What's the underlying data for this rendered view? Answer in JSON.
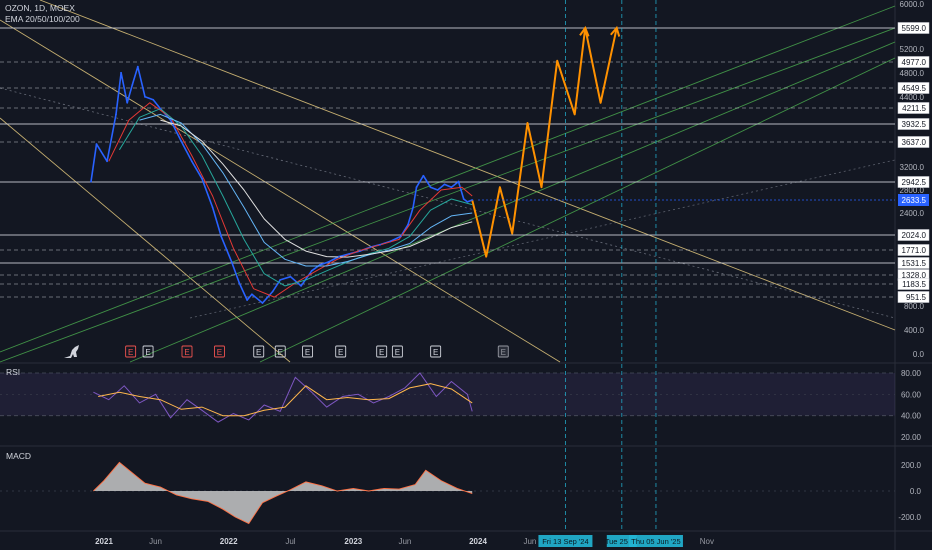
{
  "header": {
    "symbol_line": "OZON, 1D, MOEX",
    "indicator_line": "EMA 20/50/100/200"
  },
  "colors": {
    "background": "#131722",
    "price": "#2962ff",
    "ema20": "#e53935",
    "ema50": "#26a69a",
    "ema100": "#64b5f6",
    "ema200": "#e0e0e0",
    "projection": "#ff9100",
    "channel_yellow": "#ffe08a",
    "channel_green": "#4caf50",
    "level_line": "#d1d4dc",
    "cycle_line": "#22b6d6",
    "rsi_line": "#7e57c2",
    "rsi_signal": "#ffb74d",
    "macd_hist": "#c8c8c8",
    "macd_line": "#ff7043"
  },
  "icons": {
    "logo": "tradingview-dino-icon",
    "earnings": "earnings-marker-icon"
  },
  "chart_data": [
    {
      "type": "line",
      "panel": "price",
      "title": "OZON, 1D, MOEX",
      "series": [
        {
          "name": "OZON",
          "x": [
            "2020-11-24",
            "2020-12-10",
            "2021-01-10",
            "2021-02-05",
            "2021-02-20",
            "2021-03-10",
            "2021-03-25",
            "2021-04-10",
            "2021-05-01",
            "2021-05-25",
            "2021-06-15",
            "2021-07-15",
            "2021-08-15",
            "2021-09-15",
            "2021-10-15",
            "2021-11-15",
            "2021-12-10",
            "2022-01-10",
            "2022-02-01",
            "2022-02-24",
            "2022-03-10",
            "2022-04-10",
            "2022-05-10",
            "2022-06-01",
            "2022-07-01",
            "2022-08-01",
            "2022-09-01",
            "2022-09-25",
            "2022-10-20",
            "2022-11-20",
            "2022-12-20",
            "2023-01-20",
            "2023-02-20",
            "2023-03-20",
            "2023-04-20",
            "2023-05-20",
            "2023-06-10",
            "2023-06-25",
            "2023-07-05",
            "2023-07-25",
            "2023-08-15",
            "2023-09-05",
            "2023-09-25",
            "2023-10-15",
            "2023-11-05",
            "2023-11-20",
            "2023-12-01",
            "2023-12-15"
          ],
          "values": [
            2950,
            3600,
            3300,
            4100,
            4800,
            4300,
            4600,
            4900,
            4400,
            4350,
            4200,
            4000,
            3650,
            3300,
            3000,
            2500,
            2000,
            1550,
            1200,
            900,
            1000,
            850,
            1050,
            1250,
            1300,
            1150,
            1400,
            1500,
            1550,
            1650,
            1700,
            1750,
            1820,
            1860,
            1920,
            2000,
            2200,
            2500,
            2850,
            3050,
            2850,
            2800,
            2900,
            2850,
            2950,
            2650,
            2600,
            2633.5
          ]
        },
        {
          "name": "EMA 20",
          "x": [
            "2021-01-15",
            "2021-03-15",
            "2021-05-15",
            "2021-07-15",
            "2021-09-15",
            "2021-11-15",
            "2022-01-15",
            "2022-03-15",
            "2022-05-15",
            "2022-07-15",
            "2022-09-15",
            "2022-11-15",
            "2023-01-15",
            "2023-03-15",
            "2023-05-15",
            "2023-07-15",
            "2023-09-15",
            "2023-11-15",
            "2023-12-15"
          ],
          "values": [
            3300,
            4000,
            4300,
            4050,
            3400,
            2700,
            1800,
            1100,
            950,
            1200,
            1400,
            1600,
            1750,
            1850,
            1950,
            2450,
            2800,
            2850,
            2700
          ]
        },
        {
          "name": "EMA 50",
          "x": [
            "2021-02-15",
            "2021-04-15",
            "2021-06-15",
            "2021-08-15",
            "2021-10-15",
            "2021-12-15",
            "2022-02-15",
            "2022-04-15",
            "2022-06-15",
            "2022-08-15",
            "2022-10-15",
            "2022-12-15",
            "2023-02-15",
            "2023-04-15",
            "2023-06-15",
            "2023-08-15",
            "2023-10-15",
            "2023-12-15"
          ],
          "values": [
            3500,
            4050,
            4200,
            3900,
            3400,
            2700,
            1950,
            1350,
            1150,
            1250,
            1400,
            1550,
            1700,
            1800,
            2000,
            2450,
            2650,
            2550
          ]
        },
        {
          "name": "EMA 100",
          "x": [
            "2021-04-15",
            "2021-06-15",
            "2021-08-15",
            "2021-10-15",
            "2021-12-15",
            "2022-02-15",
            "2022-04-15",
            "2022-06-15",
            "2022-08-15",
            "2022-10-15",
            "2022-12-15",
            "2023-02-15",
            "2023-04-15",
            "2023-06-15",
            "2023-08-15",
            "2023-10-15",
            "2023-12-15"
          ],
          "values": [
            4000,
            4100,
            3950,
            3600,
            3100,
            2500,
            1900,
            1600,
            1480,
            1480,
            1560,
            1680,
            1770,
            1880,
            2150,
            2350,
            2400
          ]
        },
        {
          "name": "EMA 200",
          "x": [
            "2021-06-15",
            "2021-08-15",
            "2021-10-15",
            "2021-12-15",
            "2022-02-15",
            "2022-04-15",
            "2022-06-15",
            "2022-08-15",
            "2022-10-15",
            "2022-12-15",
            "2023-02-15",
            "2023-04-15",
            "2023-06-15",
            "2023-08-15",
            "2023-10-15",
            "2023-12-15"
          ],
          "values": [
            4000,
            3900,
            3650,
            3250,
            2800,
            2300,
            1950,
            1750,
            1650,
            1640,
            1690,
            1750,
            1830,
            1980,
            2150,
            2250
          ]
        },
        {
          "name": "Projection",
          "x": [
            "2023-12-15",
            "2024-01-25",
            "2024-03-05",
            "2024-04-10",
            "2024-05-25",
            "2024-07-05",
            "2024-08-20",
            "2024-10-10",
            "2024-11-10",
            "2024-12-25",
            "2025-02-10"
          ],
          "values": [
            2633.5,
            1650,
            2850,
            2050,
            3950,
            2850,
            5000,
            4100,
            5599,
            4300,
            5600
          ]
        }
      ],
      "price_levels": [
        5599.0,
        4977.0,
        4549.5,
        4211.5,
        3932.5,
        3637.0,
        2942.5,
        2024.0,
        1771.0,
        1531.5,
        1328.0,
        1183.5,
        951.5
      ],
      "current_price": 2633.5,
      "y_ticks": [
        6000.0,
        5200.0,
        4800.0,
        4400.0,
        3600.0,
        3200.0,
        2800.0,
        2400.0,
        800.0,
        400.0,
        0.0
      ],
      "x_ticks": [
        "2021",
        "Jun",
        "2022",
        "Jul",
        "2023",
        "Jun",
        "2024",
        "Jun",
        "Nov"
      ],
      "x_ticks_bold": [
        "2021",
        "2022",
        "2023",
        "2024"
      ],
      "date_labels": [
        "Fri 13 Sep '24",
        "Tue 25 Fe",
        "Thu 05 Jun '25"
      ],
      "date_label_x": [
        "2024-09-13",
        "2025-02-25",
        "2025-06-05"
      ],
      "earnings_markers": [
        {
          "date": "2021-03-20",
          "kind": "negative"
        },
        {
          "date": "2021-05-10",
          "kind": "neutral"
        },
        {
          "date": "2021-09-01",
          "kind": "negative"
        },
        {
          "date": "2021-12-05",
          "kind": "negative"
        },
        {
          "date": "2022-03-30",
          "kind": "neutral"
        },
        {
          "date": "2022-06-01",
          "kind": "neutral"
        },
        {
          "date": "2022-08-20",
          "kind": "neutral"
        },
        {
          "date": "2022-11-25",
          "kind": "neutral"
        },
        {
          "date": "2023-03-25",
          "kind": "neutral"
        },
        {
          "date": "2023-05-10",
          "kind": "neutral"
        },
        {
          "date": "2023-08-30",
          "kind": "neutral"
        },
        {
          "date": "2024-03-15",
          "kind": "future"
        }
      ],
      "earnings_letter": "E"
    },
    {
      "type": "line",
      "panel": "rsi",
      "title": "RSI",
      "series": [
        {
          "name": "RSI",
          "x": [
            "2020-12-01",
            "2021-01-15",
            "2021-03-01",
            "2021-04-15",
            "2021-06-01",
            "2021-07-15",
            "2021-09-01",
            "2021-10-15",
            "2021-12-01",
            "2022-01-15",
            "2022-03-01",
            "2022-04-15",
            "2022-06-01",
            "2022-07-15",
            "2022-09-01",
            "2022-10-15",
            "2022-12-01",
            "2023-01-15",
            "2023-03-01",
            "2023-04-15",
            "2023-06-01",
            "2023-07-15",
            "2023-09-01",
            "2023-10-15",
            "2023-12-01",
            "2023-12-15"
          ],
          "values": [
            62,
            55,
            68,
            52,
            60,
            38,
            55,
            45,
            34,
            42,
            36,
            50,
            44,
            76,
            62,
            48,
            58,
            60,
            52,
            58,
            66,
            80,
            58,
            72,
            60,
            44
          ]
        },
        {
          "name": "RSI MA",
          "x": [
            "2020-12-15",
            "2021-02-15",
            "2021-04-15",
            "2021-06-15",
            "2021-08-15",
            "2021-10-15",
            "2021-12-15",
            "2022-02-15",
            "2022-04-15",
            "2022-06-15",
            "2022-08-15",
            "2022-10-15",
            "2022-12-15",
            "2023-02-15",
            "2023-04-15",
            "2023-06-15",
            "2023-08-15",
            "2023-10-15",
            "2023-12-15"
          ],
          "values": [
            58,
            62,
            58,
            55,
            46,
            48,
            40,
            40,
            45,
            48,
            68,
            55,
            57,
            55,
            56,
            66,
            70,
            65,
            52
          ]
        }
      ],
      "y_ticks": [
        80.0,
        60.0,
        40.0,
        20.0
      ],
      "band": [
        40,
        80
      ]
    },
    {
      "type": "area",
      "panel": "macd",
      "title": "MACD",
      "series": [
        {
          "name": "MACD",
          "x": [
            "2020-12-01",
            "2021-01-01",
            "2021-02-15",
            "2021-03-20",
            "2021-05-01",
            "2021-06-15",
            "2021-08-01",
            "2021-09-15",
            "2021-11-01",
            "2021-12-15",
            "2022-01-20",
            "2022-03-01",
            "2022-04-10",
            "2022-05-20",
            "2022-07-01",
            "2022-08-15",
            "2022-10-01",
            "2022-11-15",
            "2023-01-01",
            "2023-02-15",
            "2023-04-01",
            "2023-05-15",
            "2023-07-01",
            "2023-08-01",
            "2023-09-15",
            "2023-11-01",
            "2023-12-15"
          ],
          "values": [
            0,
            80,
            220,
            150,
            60,
            30,
            -30,
            -60,
            -80,
            -140,
            -200,
            -250,
            -90,
            -40,
            10,
            70,
            40,
            0,
            20,
            0,
            20,
            15,
            50,
            160,
            80,
            20,
            -20
          ]
        }
      ],
      "y_ticks": [
        200.0,
        0.0,
        -200.0
      ]
    }
  ]
}
